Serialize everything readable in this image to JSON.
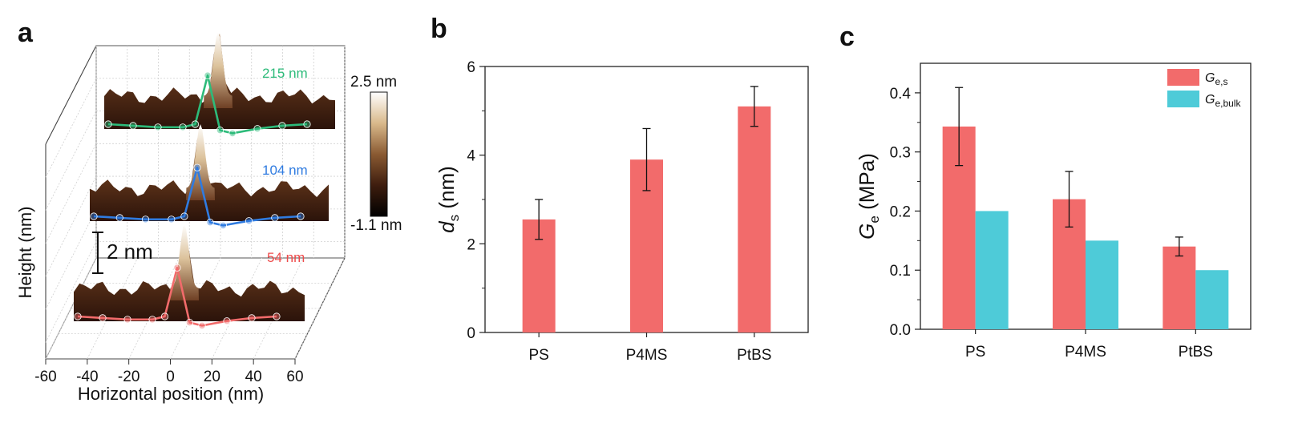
{
  "panel_letters": {
    "a": "a",
    "b": "b",
    "c": "c"
  },
  "colors": {
    "red": "#F26B6B",
    "cyan": "#4ECBD8",
    "green": "#2DBB7A",
    "blue": "#2F7BE0",
    "label_red": "#EE4B4B",
    "terrain_dark": "#3a1c10",
    "terrain_mid": "#6e3f24",
    "terrain_light": "#c69a6c"
  },
  "panel_a": {
    "ylabel": "Height (nm)",
    "xlabel": "Horizontal position (nm)",
    "scale_bar_label": "2 nm",
    "colorbar_max": "2.5 nm",
    "colorbar_min": "-1.1 nm",
    "profile_labels": [
      "215 nm",
      "104 nm",
      "54 nm"
    ]
  },
  "chart_data": [
    {
      "type": "line",
      "panel": "a",
      "xlabel": "Horizontal position (nm)",
      "ylabel": "Height (nm)",
      "xlim": [
        -60,
        60
      ],
      "x_ticks": [
        "-60",
        "-40",
        "-20",
        "0",
        "20",
        "40",
        "60"
      ],
      "series": [
        {
          "name": "215 nm",
          "x": [
            -40,
            -30,
            -20,
            -10,
            -5,
            0,
            5,
            10,
            20,
            30,
            40
          ],
          "y": [
            0,
            -0.05,
            -0.1,
            -0.1,
            0.0,
            1.6,
            -0.2,
            -0.3,
            -0.15,
            -0.05,
            0
          ]
        },
        {
          "name": "104 nm",
          "x": [
            -40,
            -30,
            -20,
            -10,
            -5,
            0,
            5,
            10,
            20,
            30,
            40
          ],
          "y": [
            0,
            -0.05,
            -0.1,
            -0.1,
            0.0,
            1.6,
            -0.2,
            -0.3,
            -0.15,
            -0.05,
            0
          ]
        },
        {
          "name": "54 nm",
          "x": [
            -40,
            -30,
            -20,
            -10,
            -5,
            0,
            5,
            10,
            20,
            30,
            40
          ],
          "y": [
            0,
            -0.05,
            -0.1,
            -0.1,
            0.0,
            1.6,
            -0.2,
            -0.3,
            -0.15,
            -0.05,
            0
          ]
        }
      ]
    },
    {
      "type": "bar",
      "panel": "b",
      "categories": [
        "PS",
        "P4MS",
        "PtBS"
      ],
      "values": [
        2.55,
        3.9,
        5.1
      ],
      "errors": [
        0.45,
        0.7,
        0.45
      ],
      "ylabel_main": "d",
      "ylabel_sub": "s",
      "ylabel_tail": " (nm)",
      "ylim": [
        0,
        6
      ],
      "y_ticks": [
        0,
        2,
        4,
        6
      ],
      "grid": false
    },
    {
      "type": "bar",
      "panel": "c",
      "categories": [
        "PS",
        "P4MS",
        "PtBS"
      ],
      "series": [
        {
          "name_main": "G",
          "name_sub": "e,s",
          "values": [
            0.343,
            0.22,
            0.14
          ],
          "errors": [
            0.066,
            0.047,
            0.016
          ]
        },
        {
          "name_main": "G",
          "name_sub": "e,bulk",
          "values": [
            0.2,
            0.15,
            0.1
          ],
          "errors": [
            null,
            null,
            null
          ]
        }
      ],
      "ylabel_main": "G",
      "ylabel_sub": "e",
      "ylabel_tail": " (MPa)",
      "ylim": [
        0,
        0.45
      ],
      "y_ticks": [
        "0.0",
        "0.1",
        "0.2",
        "0.3",
        "0.4"
      ],
      "legend_position": "top-right",
      "grid": false
    }
  ]
}
